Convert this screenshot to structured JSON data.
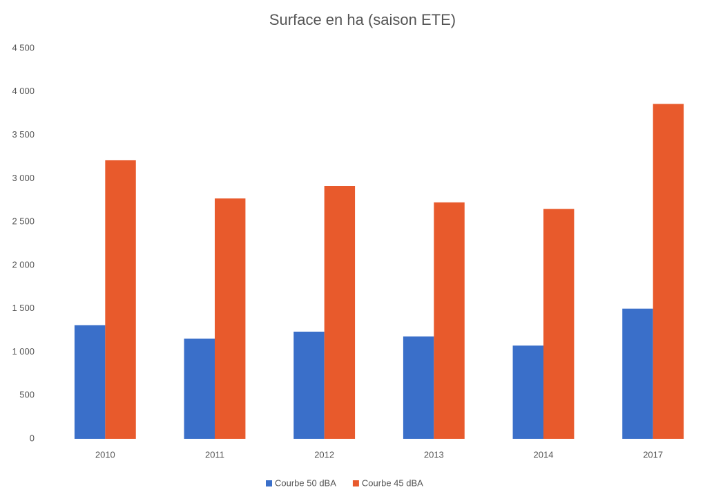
{
  "chart_data": {
    "type": "bar",
    "title": "Surface en ha (saison ETE)",
    "categories": [
      "2010",
      "2011",
      "2012",
      "2013",
      "2014",
      "2017"
    ],
    "series": [
      {
        "name": "Courbe 50 dBA",
        "color": "#3a6fc9",
        "values": [
          1310,
          1155,
          1235,
          1180,
          1075,
          1500
        ]
      },
      {
        "name": "Courbe 45 dBA",
        "color": "#e85a2c",
        "values": [
          3210,
          2770,
          2915,
          2725,
          2650,
          3860
        ]
      }
    ],
    "ylim": [
      0,
      4500
    ],
    "yticks": [
      0,
      500,
      {
        "value": 1000,
        "label": "1 000"
      },
      {
        "value": 1500,
        "label": "1 500"
      },
      {
        "value": 2000,
        "label": "2 000"
      },
      {
        "value": 2500,
        "label": "2 500"
      },
      {
        "value": 3000,
        "label": "3 000"
      },
      {
        "value": 3500,
        "label": "3 500"
      },
      {
        "value": 4000,
        "label": "4 000"
      },
      {
        "value": 4500,
        "label": "4 500"
      }
    ],
    "grid": false,
    "legend": "bottom"
  }
}
